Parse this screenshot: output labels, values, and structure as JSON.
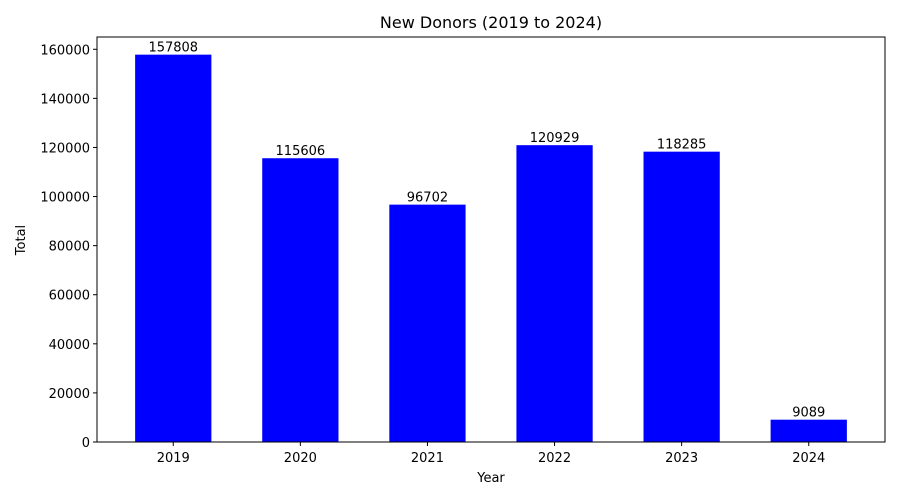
{
  "chart_data": {
    "type": "bar",
    "title": "New Donors (2019 to 2024)",
    "xlabel": "Year",
    "ylabel": "Total",
    "categories": [
      "2019",
      "2020",
      "2021",
      "2022",
      "2023",
      "2024"
    ],
    "values": [
      157808,
      115606,
      96702,
      120929,
      118285,
      9089
    ],
    "data_labels": [
      "157808",
      "115606",
      "96702",
      "120929",
      "118285",
      "9089"
    ],
    "ylim": [
      0,
      165000
    ],
    "yticks": [
      0,
      20000,
      40000,
      60000,
      80000,
      100000,
      120000,
      140000,
      160000
    ],
    "ytick_labels": [
      "0",
      "20000",
      "40000",
      "60000",
      "80000",
      "100000",
      "120000",
      "140000",
      "160000"
    ],
    "grid": false,
    "bar_color": "#0000ff"
  }
}
